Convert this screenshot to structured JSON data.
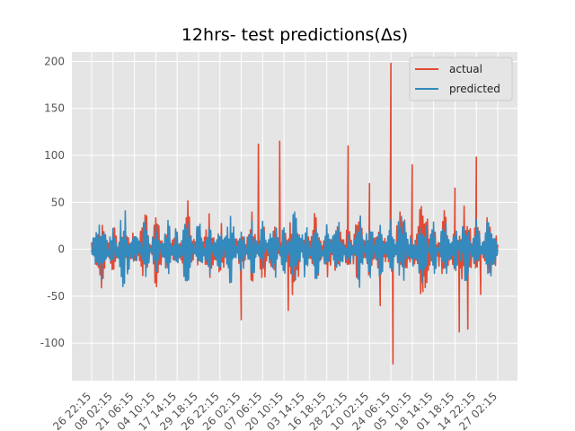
{
  "chart_data": {
    "type": "line",
    "title": "12hrs- test predictions(Δs)",
    "xlabel": "",
    "ylabel": "",
    "ylim": [
      -140,
      210
    ],
    "grid": true,
    "legend_position": "top-right",
    "y_ticks": [
      -100,
      -50,
      0,
      50,
      100,
      150,
      200
    ],
    "x_tick_labels": [
      "26 22:15",
      "08 02:15",
      "21 06:15",
      "04 10:15",
      "17 14:15",
      "29 18:15",
      "26 22:15",
      "26 02:15",
      "07 06:15",
      "20 10:15",
      "03 14:15",
      "16 18:15",
      "28 22:15",
      "10 02:15",
      "24 06:15",
      "05 10:15",
      "18 14:15",
      "01 18:15",
      "14 22:15",
      "27 02:15"
    ],
    "series": [
      {
        "name": "actual",
        "color": "#E24A33",
        "x": [
          0,
          5,
          10,
          15,
          20,
          25,
          30,
          35,
          40,
          45,
          50,
          55,
          60,
          65,
          70,
          75,
          80,
          85,
          90,
          95,
          100,
          105,
          110,
          115,
          120,
          125,
          130,
          135,
          140,
          145,
          150,
          155,
          160,
          165,
          170,
          175,
          180,
          185,
          190
        ],
        "y": [
          -5,
          40,
          -30,
          30,
          -20,
          55,
          -45,
          20,
          -25,
          50,
          -30,
          40,
          -30,
          10,
          -15,
          35,
          -40,
          30,
          -20,
          60,
          -25,
          40,
          -35,
          30,
          -25,
          45,
          -35,
          25,
          -20,
          50,
          -30,
          70,
          -20,
          40,
          -25,
          60,
          -35,
          30,
          5
        ],
        "spikes": [
          {
            "x": 70,
            "y": -75
          },
          {
            "x": 78,
            "y": 112
          },
          {
            "x": 88,
            "y": 115
          },
          {
            "x": 92,
            "y": -65
          },
          {
            "x": 120,
            "y": 110
          },
          {
            "x": 130,
            "y": 70
          },
          {
            "x": 135,
            "y": -60
          },
          {
            "x": 140,
            "y": 198
          },
          {
            "x": 141,
            "y": -122
          },
          {
            "x": 150,
            "y": 90
          },
          {
            "x": 155,
            "y": -45
          },
          {
            "x": 170,
            "y": 65
          },
          {
            "x": 172,
            "y": -88
          },
          {
            "x": 176,
            "y": -85
          },
          {
            "x": 180,
            "y": 98
          },
          {
            "x": 182,
            "y": -48
          }
        ]
      },
      {
        "name": "predicted",
        "color": "#348ABD",
        "x": [
          0,
          5,
          10,
          15,
          20,
          25,
          30,
          35,
          40,
          45,
          50,
          55,
          60,
          65,
          70,
          75,
          80,
          85,
          90,
          95,
          100,
          105,
          110,
          115,
          120,
          125,
          130,
          135,
          140,
          145,
          150,
          155,
          160,
          165,
          170,
          175,
          180,
          185,
          190
        ],
        "y": [
          0,
          35,
          -25,
          45,
          -20,
          30,
          -30,
          35,
          -20,
          45,
          -35,
          30,
          -25,
          40,
          -30,
          30,
          -25,
          35,
          -25,
          45,
          -30,
          40,
          -30,
          35,
          -20,
          40,
          -30,
          35,
          -30,
          45,
          -25,
          40,
          -30,
          35,
          -25,
          40,
          -30,
          35,
          0
        ]
      }
    ]
  }
}
